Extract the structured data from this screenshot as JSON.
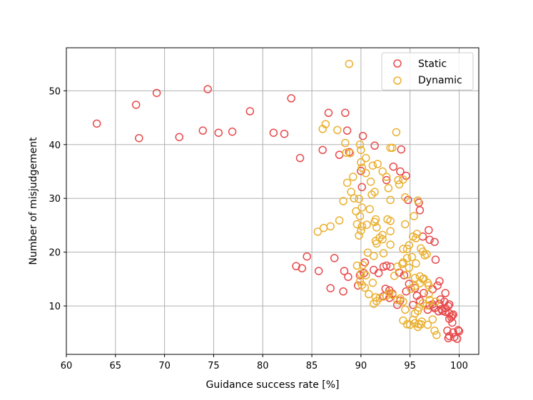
{
  "chart_data": {
    "type": "scatter",
    "xlabel": "Guidance success rate [%]",
    "ylabel": "Number of misjudgement",
    "xlim": [
      60,
      102
    ],
    "ylim": [
      1,
      58
    ],
    "xticks": [
      60,
      65,
      70,
      75,
      80,
      85,
      90,
      95,
      100
    ],
    "yticks": [
      10,
      20,
      30,
      40,
      50
    ],
    "grid": true,
    "legend_position": "top-right",
    "series": [
      {
        "name": "Static",
        "color": "#e8484a",
        "points": [
          [
            63.1,
            43.9
          ],
          [
            67.1,
            47.4
          ],
          [
            67.4,
            41.2
          ],
          [
            69.2,
            49.6
          ],
          [
            71.5,
            41.4
          ],
          [
            73.9,
            42.6
          ],
          [
            74.4,
            50.3
          ],
          [
            75.5,
            42.2
          ],
          [
            76.9,
            42.4
          ],
          [
            78.7,
            46.2
          ],
          [
            81.1,
            42.2
          ],
          [
            82.2,
            42.0
          ],
          [
            82.9,
            48.6
          ],
          [
            83.8,
            37.5
          ],
          [
            84.5,
            19.2
          ],
          [
            83.4,
            17.4
          ],
          [
            84.0,
            17.0
          ],
          [
            85.7,
            16.5
          ],
          [
            86.1,
            39.0
          ],
          [
            86.7,
            45.9
          ],
          [
            87.3,
            18.9
          ],
          [
            87.8,
            38.1
          ],
          [
            88.4,
            45.9
          ],
          [
            88.6,
            42.6
          ],
          [
            88.8,
            38.6
          ],
          [
            88.3,
            16.5
          ],
          [
            88.7,
            15.4
          ],
          [
            86.9,
            13.3
          ],
          [
            88.2,
            12.7
          ],
          [
            89.7,
            13.8
          ],
          [
            89.9,
            15.7
          ],
          [
            90.3,
            16.1
          ],
          [
            90.2,
            41.6
          ],
          [
            90.0,
            35.1
          ],
          [
            90.1,
            32.1
          ],
          [
            91.4,
            39.8
          ],
          [
            92.6,
            33.4
          ],
          [
            93.3,
            35.9
          ],
          [
            94.0,
            35.0
          ],
          [
            94.1,
            39.1
          ],
          [
            94.6,
            34.2
          ],
          [
            94.8,
            29.7
          ],
          [
            95.9,
            29.2
          ],
          [
            96.0,
            27.8
          ],
          [
            90.4,
            18.1
          ],
          [
            91.3,
            16.7
          ],
          [
            91.8,
            16.1
          ],
          [
            92.3,
            17.3
          ],
          [
            92.6,
            17.5
          ],
          [
            93.0,
            17.3
          ],
          [
            93.9,
            16.2
          ],
          [
            94.4,
            15.7
          ],
          [
            94.9,
            14.1
          ],
          [
            95.5,
            13.3
          ],
          [
            92.5,
            13.2
          ],
          [
            92.9,
            12.9
          ],
          [
            93.2,
            12.3
          ],
          [
            92.3,
            11.8
          ],
          [
            92.9,
            11.5
          ],
          [
            94.0,
            11.0
          ],
          [
            93.7,
            10.2
          ],
          [
            94.6,
            12.7
          ],
          [
            95.3,
            10.2
          ],
          [
            95.7,
            11.9
          ],
          [
            96.0,
            11.0
          ],
          [
            96.4,
            12.4
          ],
          [
            96.3,
            22.9
          ],
          [
            96.9,
            24.1
          ],
          [
            97.0,
            22.3
          ],
          [
            97.5,
            21.9
          ],
          [
            97.6,
            18.6
          ],
          [
            97.8,
            13.8
          ],
          [
            97.3,
            13.1
          ],
          [
            98.0,
            14.6
          ],
          [
            98.6,
            12.4
          ],
          [
            98.1,
            11.2
          ],
          [
            98.5,
            10.8
          ],
          [
            97.3,
            10.3
          ],
          [
            98.9,
            10.0
          ],
          [
            98.2,
            9.4
          ],
          [
            98.6,
            8.9
          ],
          [
            99.0,
            8.6
          ],
          [
            99.3,
            8.2
          ],
          [
            99.4,
            8.4
          ],
          [
            99.0,
            7.6
          ],
          [
            99.3,
            6.9
          ],
          [
            99.2,
            7.9
          ],
          [
            98.8,
            5.4
          ],
          [
            99.0,
            4.4
          ],
          [
            99.5,
            4.2
          ],
          [
            99.8,
            3.9
          ],
          [
            99.9,
            5.5
          ],
          [
            100.0,
            5.3
          ],
          [
            99.4,
            5.1
          ],
          [
            98.9,
            4.0
          ],
          [
            98.3,
            9.1
          ],
          [
            97.5,
            9.6
          ],
          [
            97.0,
            10.1
          ],
          [
            96.8,
            9.3
          ],
          [
            97.9,
            9.0
          ],
          [
            98.6,
            9.6
          ],
          [
            99.0,
            10.3
          ],
          [
            98.0,
            10.4
          ],
          [
            97.4,
            9.9
          ]
        ]
      },
      {
        "name": "Dynamic",
        "color": "#eab030",
        "points": [
          [
            88.8,
            55.0
          ],
          [
            86.4,
            43.8
          ],
          [
            86.1,
            42.9
          ],
          [
            87.6,
            42.7
          ],
          [
            88.4,
            40.3
          ],
          [
            88.5,
            38.5
          ],
          [
            88.9,
            38.4
          ],
          [
            89.9,
            40.0
          ],
          [
            90.0,
            39.0
          ],
          [
            90.5,
            37.5
          ],
          [
            90.0,
            36.7
          ],
          [
            90.1,
            35.7
          ],
          [
            90.5,
            34.7
          ],
          [
            89.2,
            34.0
          ],
          [
            88.6,
            32.9
          ],
          [
            89.0,
            31.2
          ],
          [
            89.3,
            30.0
          ],
          [
            89.8,
            29.9
          ],
          [
            89.5,
            27.6
          ],
          [
            89.9,
            26.7
          ],
          [
            90.1,
            28.3
          ],
          [
            90.1,
            24.8
          ],
          [
            90.0,
            24.0
          ],
          [
            89.8,
            23.1
          ],
          [
            89.6,
            25.2
          ],
          [
            88.2,
            29.5
          ],
          [
            87.8,
            25.9
          ],
          [
            86.9,
            24.8
          ],
          [
            86.2,
            24.5
          ],
          [
            85.6,
            23.8
          ],
          [
            90.6,
            25.1
          ],
          [
            90.9,
            28.0
          ],
          [
            91.1,
            30.7
          ],
          [
            91.4,
            31.2
          ],
          [
            91.0,
            33.1
          ],
          [
            91.2,
            36.1
          ],
          [
            91.7,
            36.4
          ],
          [
            91.4,
            25.6
          ],
          [
            91.6,
            24.6
          ],
          [
            91.5,
            26.1
          ],
          [
            92.2,
            35.0
          ],
          [
            92.6,
            34.0
          ],
          [
            92.8,
            31.9
          ],
          [
            93.0,
            39.4
          ],
          [
            93.2,
            39.4
          ],
          [
            93.6,
            42.3
          ],
          [
            93.8,
            33.4
          ],
          [
            93.9,
            32.6
          ],
          [
            94.3,
            33.5
          ],
          [
            94.5,
            30.2
          ],
          [
            93.0,
            29.7
          ],
          [
            92.7,
            26.1
          ],
          [
            93.0,
            25.8
          ],
          [
            93.0,
            23.9
          ],
          [
            92.2,
            23.2
          ],
          [
            91.9,
            22.7
          ],
          [
            91.5,
            22.1
          ],
          [
            91.6,
            21.6
          ],
          [
            92.2,
            22.4
          ],
          [
            93.0,
            21.4
          ],
          [
            92.3,
            19.8
          ],
          [
            91.3,
            19.3
          ],
          [
            90.7,
            19.9
          ],
          [
            90.2,
            17.6
          ],
          [
            89.6,
            17.5
          ],
          [
            90.0,
            16.0
          ],
          [
            90.5,
            15.7
          ],
          [
            89.9,
            14.6
          ],
          [
            90.1,
            13.9
          ],
          [
            90.4,
            13.4
          ],
          [
            90.8,
            12.2
          ],
          [
            91.2,
            14.3
          ],
          [
            91.5,
            11.6
          ],
          [
            91.6,
            10.9
          ],
          [
            91.3,
            10.4
          ],
          [
            91.9,
            11.5
          ],
          [
            92.6,
            11.9
          ],
          [
            92.9,
            12.4
          ],
          [
            93.2,
            12.1
          ],
          [
            93.7,
            11.1
          ],
          [
            94.0,
            11.4
          ],
          [
            94.3,
            10.8
          ],
          [
            94.5,
            9.3
          ],
          [
            94.3,
            7.3
          ],
          [
            94.7,
            6.6
          ],
          [
            95.0,
            6.5
          ],
          [
            95.3,
            7.4
          ],
          [
            95.5,
            6.8
          ],
          [
            95.9,
            6.6
          ],
          [
            96.2,
            7.1
          ],
          [
            95.8,
            9.1
          ],
          [
            95.5,
            8.6
          ],
          [
            95.9,
            9.7
          ],
          [
            96.3,
            10.5
          ],
          [
            96.7,
            10.1
          ],
          [
            96.9,
            12.2
          ],
          [
            96.8,
            14.3
          ],
          [
            96.4,
            15.1
          ],
          [
            96.0,
            14.2
          ],
          [
            95.5,
            13.7
          ],
          [
            95.1,
            13.2
          ],
          [
            94.7,
            15.8
          ],
          [
            95.5,
            15.2
          ],
          [
            96.0,
            15.5
          ],
          [
            95.6,
            17.9
          ],
          [
            94.9,
            17.1
          ],
          [
            95.2,
            19.1
          ],
          [
            94.7,
            20.6
          ],
          [
            94.9,
            21.3
          ],
          [
            95.3,
            22.9
          ],
          [
            95.6,
            22.6
          ],
          [
            95.7,
            23.4
          ],
          [
            96.1,
            20.7
          ],
          [
            96.3,
            20.1
          ],
          [
            95.8,
            29.6
          ],
          [
            95.4,
            26.7
          ],
          [
            94.5,
            25.2
          ],
          [
            94.3,
            20.6
          ],
          [
            94.3,
            18.1
          ],
          [
            94.7,
            18.9
          ],
          [
            96.5,
            19.4
          ],
          [
            96.7,
            19.6
          ],
          [
            96.3,
            15.0
          ],
          [
            96.9,
            13.8
          ],
          [
            97.0,
            11.1
          ],
          [
            97.6,
            10.8
          ],
          [
            97.5,
            5.4
          ],
          [
            97.7,
            4.6
          ],
          [
            96.8,
            6.5
          ],
          [
            97.3,
            7.5
          ],
          [
            96.1,
            6.6
          ],
          [
            95.8,
            6.1
          ],
          [
            93.4,
            15.6
          ],
          [
            93.7,
            17.3
          ],
          [
            94.2,
            17.8
          ]
        ]
      }
    ]
  }
}
